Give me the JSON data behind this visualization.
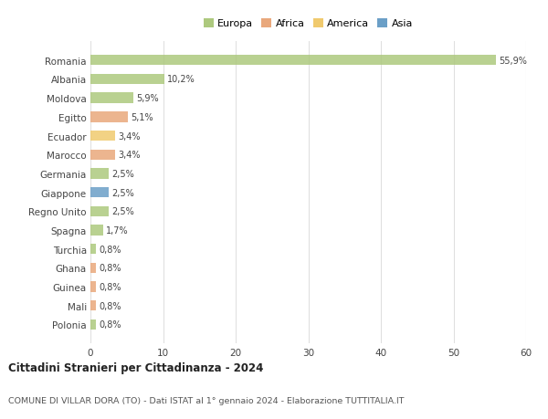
{
  "categories": [
    "Romania",
    "Albania",
    "Moldova",
    "Egitto",
    "Ecuador",
    "Marocco",
    "Germania",
    "Giappone",
    "Regno Unito",
    "Spagna",
    "Turchia",
    "Ghana",
    "Guinea",
    "Mali",
    "Polonia"
  ],
  "values": [
    55.9,
    10.2,
    5.9,
    5.1,
    3.4,
    3.4,
    2.5,
    2.5,
    2.5,
    1.7,
    0.8,
    0.8,
    0.8,
    0.8,
    0.8
  ],
  "labels": [
    "55,9%",
    "10,2%",
    "5,9%",
    "5,1%",
    "3,4%",
    "3,4%",
    "2,5%",
    "2,5%",
    "2,5%",
    "1,7%",
    "0,8%",
    "0,8%",
    "0,8%",
    "0,8%",
    "0,8%"
  ],
  "colors": [
    "#adc97e",
    "#adc97e",
    "#adc97e",
    "#e9a87c",
    "#f0ca6e",
    "#e9a87c",
    "#adc97e",
    "#6b9fc7",
    "#adc97e",
    "#adc97e",
    "#adc97e",
    "#e9a87c",
    "#e9a87c",
    "#e9a87c",
    "#adc97e"
  ],
  "legend_labels": [
    "Europa",
    "Africa",
    "America",
    "Asia"
  ],
  "legend_colors": [
    "#adc97e",
    "#e9a87c",
    "#f0ca6e",
    "#6b9fc7"
  ],
  "title": "Cittadini Stranieri per Cittadinanza - 2024",
  "subtitle": "COMUNE DI VILLAR DORA (TO) - Dati ISTAT al 1° gennaio 2024 - Elaborazione TUTTITALIA.IT",
  "xlim": [
    0,
    60
  ],
  "xticks": [
    0,
    10,
    20,
    30,
    40,
    50,
    60
  ],
  "background_color": "#ffffff",
  "bar_height": 0.55,
  "grid_color": "#e0e0e0"
}
